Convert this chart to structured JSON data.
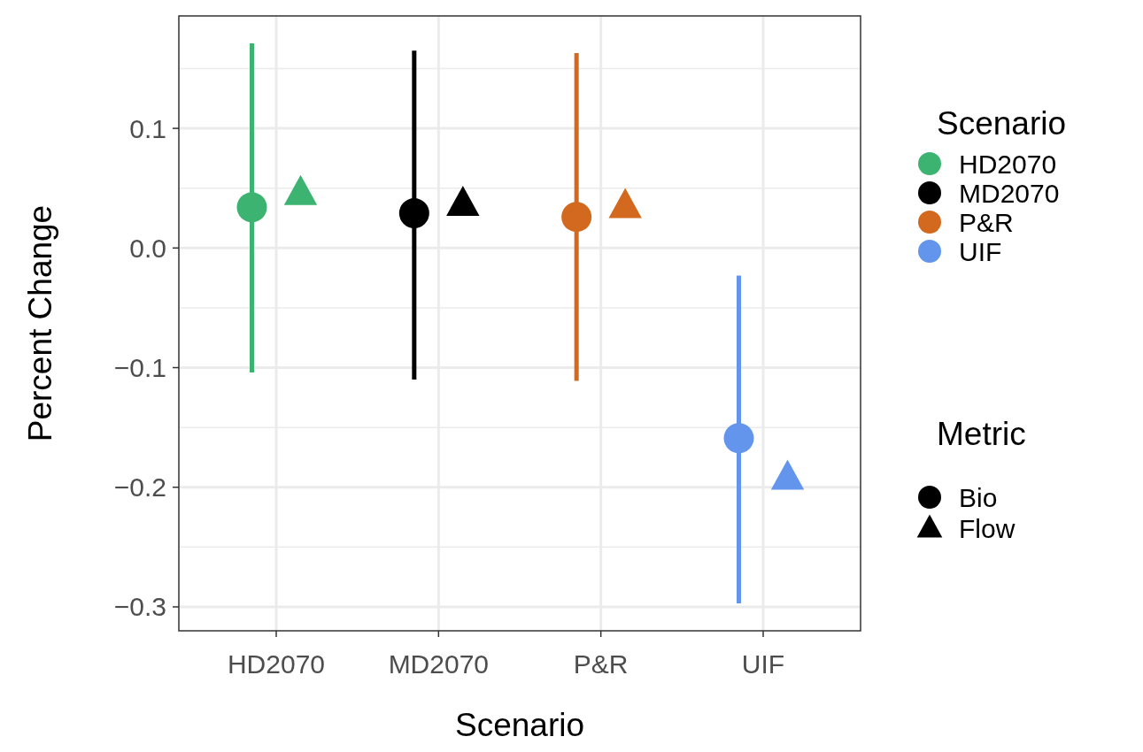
{
  "chart_data": {
    "type": "scatter",
    "xlabel": "Scenario",
    "ylabel": "Percent Change",
    "legend_title": [
      "Scenario",
      "Metric"
    ],
    "categories": [
      "HD2070",
      "MD2070",
      "P&R",
      "UIF"
    ],
    "series": [
      {
        "name": "Bio",
        "type": "scatter",
        "marker": "circle",
        "color": "#000000",
        "colors": [
          "#3cb371",
          "#000000",
          "#d2691e",
          "#6495ed"
        ],
        "values": [
          0.034,
          0.029,
          0.026,
          -0.159
        ],
        "errors": [
          [
            -0.104,
            0.171
          ],
          [
            -0.11,
            0.165
          ],
          [
            -0.111,
            0.163
          ],
          [
            -0.297,
            -0.023
          ]
        ]
      },
      {
        "name": "Flow",
        "type": "scatter",
        "marker": "triangle",
        "color": "#000000",
        "colors": [
          "#3cb371",
          "#000000",
          "#d2691e",
          "#6495ed"
        ],
        "values": [
          0.046,
          0.037,
          0.035,
          -0.192
        ]
      }
    ],
    "ylim": [
      -0.32,
      0.194
    ],
    "yticks": [
      -0.3,
      {
        "value": -0.25,
        "label": null
      },
      -0.2,
      {
        "value": -0.15,
        "label": null
      },
      -0.1,
      {
        "value": -0.05,
        "label": null
      },
      {
        "value": 0,
        "label": "0.0"
      },
      {
        "value": 0.05,
        "label": null
      },
      0.1,
      {
        "value": 0.15,
        "label": null
      }
    ],
    "grid": true,
    "legend": "right"
  }
}
